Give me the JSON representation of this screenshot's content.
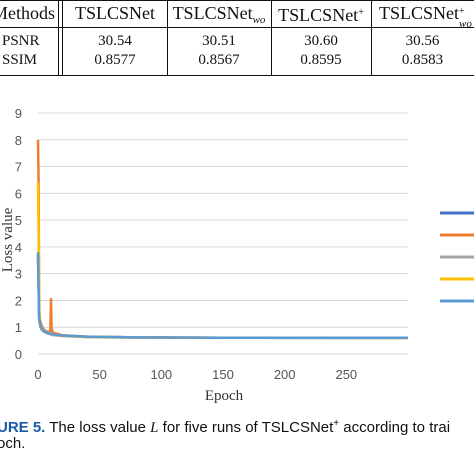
{
  "table": {
    "header_label": "Methods",
    "columns": [
      {
        "base": "TSLCSNet",
        "sup": "",
        "sub": ""
      },
      {
        "base": "TSLCSNet",
        "sup": "",
        "sub": "wo"
      },
      {
        "base": "TSLCSNet",
        "sup": "+",
        "sub": ""
      },
      {
        "base": "TSLCSNet",
        "sup": "+",
        "sub": "wo"
      }
    ],
    "rows": [
      {
        "label": "PSNR",
        "values": [
          "30.54",
          "30.51",
          "30.60",
          "30.56"
        ]
      },
      {
        "label": "SSIM",
        "values": [
          "0.8577",
          "0.8567",
          "0.8595",
          "0.8583"
        ]
      }
    ]
  },
  "caption": {
    "label": "URE 5.",
    "text_before": "The loss value ",
    "var": "L",
    "text_middle": " for five runs of TSLCSNet",
    "sup": "+",
    "text_after": " according to trai",
    "line2": "och."
  },
  "chart_data": {
    "type": "line",
    "xlabel": "Epoch",
    "ylabel": "Loss value",
    "xlim": [
      0,
      300
    ],
    "ylim": [
      0,
      9
    ],
    "xticks": [
      "0",
      "50",
      "100",
      "150",
      "200",
      "250"
    ],
    "yticks": [
      "0",
      "1",
      "2",
      "3",
      "4",
      "5",
      "6",
      "7",
      "8",
      "9"
    ],
    "grid": true,
    "legend_position": "right",
    "series": [
      {
        "color": "#4472c4",
        "x": [
          0,
          1,
          2,
          3,
          5,
          8,
          12,
          20,
          40,
          80,
          150,
          300
        ],
        "y": [
          3.7,
          1.3,
          1.05,
          0.95,
          0.85,
          0.78,
          0.72,
          0.68,
          0.64,
          0.62,
          0.61,
          0.6
        ]
      },
      {
        "color": "#ed7d31",
        "x": [
          0,
          0.5,
          1,
          1.5,
          2,
          3,
          5,
          8,
          10,
          10.5,
          11,
          12,
          20,
          40,
          80,
          150,
          300
        ],
        "y": [
          8.0,
          6.4,
          1.6,
          1.3,
          1.2,
          1.05,
          0.9,
          0.82,
          0.85,
          2.05,
          0.95,
          0.8,
          0.7,
          0.65,
          0.62,
          0.61,
          0.6
        ]
      },
      {
        "color": "#a5a5a5",
        "x": [
          0,
          1,
          2,
          3,
          5,
          8,
          12,
          20,
          40,
          80,
          150,
          300
        ],
        "y": [
          3.5,
          1.25,
          1.0,
          0.9,
          0.82,
          0.76,
          0.71,
          0.67,
          0.63,
          0.61,
          0.6,
          0.6
        ]
      },
      {
        "color": "#ffc000",
        "x": [
          0,
          0.5,
          1,
          1.5,
          2,
          3,
          5,
          8,
          12,
          20,
          40,
          80,
          150,
          300
        ],
        "y": [
          6.4,
          4.5,
          1.7,
          1.3,
          1.1,
          0.98,
          0.88,
          0.8,
          0.73,
          0.68,
          0.64,
          0.62,
          0.61,
          0.6
        ]
      },
      {
        "color": "#5b9bd5",
        "x": [
          0,
          1,
          2,
          3,
          5,
          8,
          12,
          20,
          40,
          80,
          150,
          300
        ],
        "y": [
          3.8,
          1.35,
          1.08,
          0.96,
          0.86,
          0.79,
          0.73,
          0.69,
          0.65,
          0.62,
          0.61,
          0.61
        ]
      }
    ]
  }
}
